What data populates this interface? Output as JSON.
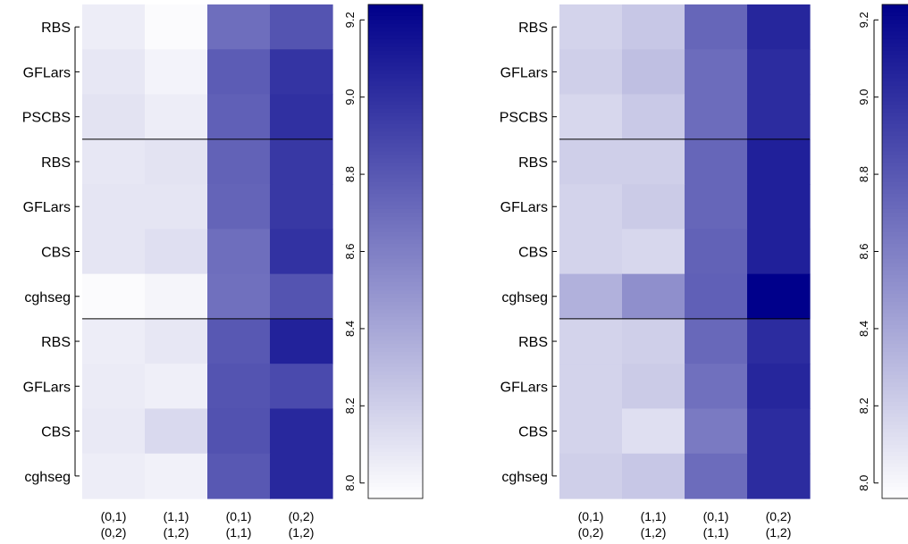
{
  "chart_data": {
    "type": "heatmap",
    "color_low": "#ffffff",
    "color_high": "#00008b",
    "colorbar": {
      "range": [
        7.96,
        9.24
      ],
      "ticks": [
        {
          "value": 8.0,
          "label": "8.0"
        },
        {
          "value": 8.2,
          "label": "8.2"
        },
        {
          "value": 8.4,
          "label": "8.4"
        },
        {
          "value": 8.6,
          "label": "8.6"
        },
        {
          "value": 8.8,
          "label": "8.8"
        },
        {
          "value": 9.0,
          "label": "9.0"
        },
        {
          "value": 9.2,
          "label": "9.2"
        }
      ]
    },
    "columns": [
      {
        "line1": "(0,1)",
        "line2": "(0,2)"
      },
      {
        "line1": "(1,1)",
        "line2": "(1,2)"
      },
      {
        "line1": "(0,1)",
        "line2": "(1,1)"
      },
      {
        "line1": "(0,2)",
        "line2": "(1,2)"
      }
    ],
    "row_groups": [
      [
        "RBS",
        "GFLars",
        "PSCBS"
      ],
      [
        "RBS",
        "GFLars",
        "CBS",
        "cghseg"
      ],
      [
        "RBS",
        "GFLars",
        "CBS",
        "cghseg"
      ]
    ],
    "panels": [
      {
        "values": [
          [
            8.05,
            7.98,
            8.69,
            8.82
          ],
          [
            8.08,
            8.02,
            8.78,
            8.98
          ],
          [
            8.1,
            8.05,
            8.76,
            9.0
          ],
          [
            8.08,
            8.1,
            8.75,
            8.96
          ],
          [
            8.09,
            8.09,
            8.74,
            8.96
          ],
          [
            8.09,
            8.12,
            8.69,
            8.99
          ],
          [
            7.98,
            8.01,
            8.68,
            8.82
          ],
          [
            8.05,
            8.08,
            8.8,
            9.07
          ],
          [
            8.06,
            8.04,
            8.82,
            8.87
          ],
          [
            8.07,
            8.15,
            8.83,
            9.04
          ],
          [
            8.05,
            8.03,
            8.8,
            9.04
          ]
        ]
      },
      {
        "values": [
          [
            8.18,
            8.24,
            8.73,
            9.05
          ],
          [
            8.2,
            8.28,
            8.7,
            9.02
          ],
          [
            8.16,
            8.23,
            8.7,
            9.02
          ],
          [
            8.2,
            8.2,
            8.73,
            9.08
          ],
          [
            8.18,
            8.22,
            8.73,
            9.08
          ],
          [
            8.18,
            8.16,
            8.75,
            9.08
          ],
          [
            8.35,
            8.52,
            8.76,
            9.24
          ],
          [
            8.18,
            8.2,
            8.72,
            9.02
          ],
          [
            8.18,
            8.22,
            8.68,
            9.05
          ],
          [
            8.18,
            8.12,
            8.63,
            9.02
          ],
          [
            8.2,
            8.24,
            8.7,
            9.02
          ]
        ]
      }
    ]
  }
}
